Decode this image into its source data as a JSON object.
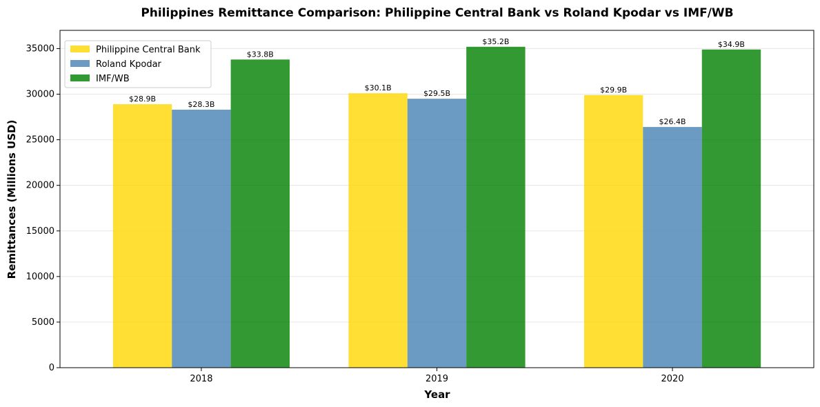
{
  "chart_data": {
    "type": "bar",
    "title": "Philippines Remittance Comparison: Philippine Central Bank vs Roland Kpodar vs IMF/WB",
    "xlabel": "Year",
    "ylabel": "Remittances (Millions USD)",
    "categories": [
      "2018",
      "2019",
      "2020"
    ],
    "series": [
      {
        "name": "Philippine Central Bank",
        "color": "#FFD700",
        "values": [
          28900,
          30100,
          29900
        ],
        "labels": [
          "$28.9B",
          "$30.1B",
          "$29.9B"
        ]
      },
      {
        "name": "Roland Kpodar",
        "color": "#4682B4",
        "values": [
          28300,
          29500,
          26400
        ],
        "labels": [
          "$28.3B",
          "$29.5B",
          "$26.4B"
        ]
      },
      {
        "name": "IMF/WB",
        "color": "#008000",
        "values": [
          33800,
          35200,
          34900
        ],
        "labels": [
          "$33.8B",
          "$35.2B",
          "$34.9B"
        ]
      }
    ],
    "ylim": [
      0,
      37000
    ],
    "yticks": [
      0,
      5000,
      10000,
      15000,
      20000,
      25000,
      30000,
      35000
    ],
    "grid": true,
    "legend_position": "top-left"
  }
}
